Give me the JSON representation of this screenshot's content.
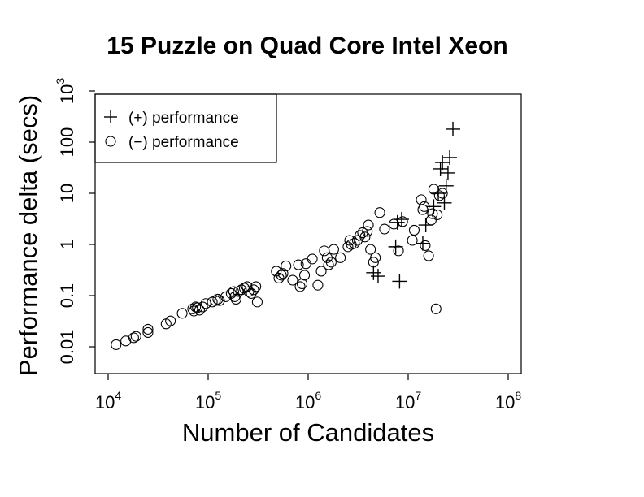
{
  "chart_data": {
    "type": "scatter",
    "title": "15 Puzzle on Quad Core Intel Xeon",
    "xlabel": "Number of Candidates",
    "ylabel": "Performance delta (secs)",
    "x_scale": "log",
    "y_scale": "log",
    "xlim": [
      7000,
      110000000
    ],
    "ylim": [
      0.004,
      1000
    ],
    "x_ticks": [
      {
        "value": 10000,
        "base": "10",
        "exp": "4"
      },
      {
        "value": 100000,
        "base": "10",
        "exp": "5"
      },
      {
        "value": 1000000,
        "base": "10",
        "exp": "6"
      },
      {
        "value": 10000000,
        "base": "10",
        "exp": "7"
      },
      {
        "value": 100000000,
        "base": "10",
        "exp": "8"
      }
    ],
    "y_ticks": [
      {
        "value": 0.01,
        "label": "0.01"
      },
      {
        "value": 0.1,
        "label": "0.1"
      },
      {
        "value": 1,
        "label": "1"
      },
      {
        "value": 10,
        "label": "10"
      },
      {
        "value": 100,
        "label": "100"
      },
      {
        "value": 1000,
        "label": "10",
        "exp": "3"
      }
    ],
    "grid": false,
    "legend": {
      "position": "top-left",
      "entries": [
        {
          "marker": "plus",
          "label": "(+) performance"
        },
        {
          "marker": "circle",
          "label": "(−) performance"
        }
      ]
    },
    "series": [
      {
        "name": "(+) performance",
        "marker": "plus",
        "points": [
          [
            4500000,
            0.28
          ],
          [
            5000000,
            0.24
          ],
          [
            7500000,
            0.9
          ],
          [
            7800000,
            2.7
          ],
          [
            8200000,
            0.19
          ],
          [
            8600000,
            3.1
          ],
          [
            14000000,
            1.05
          ],
          [
            15000000,
            2.4
          ],
          [
            18000000,
            5.5
          ],
          [
            20000000,
            10
          ],
          [
            21000000,
            30
          ],
          [
            22000000,
            40
          ],
          [
            23000000,
            6.5
          ],
          [
            24000000,
            14
          ],
          [
            25000000,
            25
          ],
          [
            26000000,
            50
          ],
          [
            28000000,
            180
          ]
        ]
      },
      {
        "name": "(−) performance",
        "marker": "circle",
        "points": [
          [
            12000,
            0.011
          ],
          [
            15000,
            0.013
          ],
          [
            18000,
            0.015
          ],
          [
            19000,
            0.016
          ],
          [
            25000,
            0.019
          ],
          [
            25000,
            0.022
          ],
          [
            38000,
            0.028
          ],
          [
            42000,
            0.032
          ],
          [
            55000,
            0.045
          ],
          [
            70000,
            0.055
          ],
          [
            72000,
            0.05
          ],
          [
            75000,
            0.06
          ],
          [
            78000,
            0.058
          ],
          [
            82000,
            0.052
          ],
          [
            88000,
            0.06
          ],
          [
            95000,
            0.07
          ],
          [
            110000,
            0.075
          ],
          [
            118000,
            0.08
          ],
          [
            125000,
            0.085
          ],
          [
            130000,
            0.08
          ],
          [
            150000,
            0.095
          ],
          [
            170000,
            0.11
          ],
          [
            180000,
            0.12
          ],
          [
            185000,
            0.095
          ],
          [
            190000,
            0.085
          ],
          [
            200000,
            0.12
          ],
          [
            215000,
            0.13
          ],
          [
            230000,
            0.14
          ],
          [
            245000,
            0.15
          ],
          [
            255000,
            0.12
          ],
          [
            270000,
            0.11
          ],
          [
            285000,
            0.13
          ],
          [
            300000,
            0.15
          ],
          [
            310000,
            0.075
          ],
          [
            480000,
            0.3
          ],
          [
            510000,
            0.22
          ],
          [
            540000,
            0.25
          ],
          [
            560000,
            0.27
          ],
          [
            600000,
            0.38
          ],
          [
            700000,
            0.2
          ],
          [
            800000,
            0.4
          ],
          [
            830000,
            0.15
          ],
          [
            870000,
            0.17
          ],
          [
            920000,
            0.25
          ],
          [
            950000,
            0.42
          ],
          [
            1100000,
            0.52
          ],
          [
            1250000,
            0.16
          ],
          [
            1350000,
            0.3
          ],
          [
            1450000,
            0.75
          ],
          [
            1550000,
            0.55
          ],
          [
            1600000,
            0.4
          ],
          [
            1700000,
            0.45
          ],
          [
            1800000,
            0.8
          ],
          [
            2100000,
            0.55
          ],
          [
            2500000,
            0.9
          ],
          [
            2600000,
            1.2
          ],
          [
            2700000,
            1.0
          ],
          [
            2900000,
            1.05
          ],
          [
            3100000,
            1.2
          ],
          [
            3300000,
            1.5
          ],
          [
            3500000,
            1.7
          ],
          [
            3700000,
            1.4
          ],
          [
            3900000,
            1.8
          ],
          [
            4000000,
            2.4
          ],
          [
            4200000,
            0.8
          ],
          [
            4500000,
            0.45
          ],
          [
            4700000,
            0.55
          ],
          [
            5200000,
            4.2
          ],
          [
            5800000,
            2.0
          ],
          [
            7200000,
            2.5
          ],
          [
            8000000,
            0.75
          ],
          [
            8800000,
            2.8
          ],
          [
            11000000,
            1.2
          ],
          [
            11500000,
            1.9
          ],
          [
            13500000,
            7.5
          ],
          [
            14000000,
            4.8
          ],
          [
            14500000,
            5.5
          ],
          [
            14800000,
            0.95
          ],
          [
            16000000,
            0.6
          ],
          [
            17000000,
            3.0
          ],
          [
            17500000,
            4.0
          ],
          [
            18000000,
            12
          ],
          [
            19000000,
            0.055
          ],
          [
            19500000,
            3.8
          ],
          [
            20500000,
            9
          ],
          [
            22000000,
            10
          ]
        ]
      }
    ]
  }
}
